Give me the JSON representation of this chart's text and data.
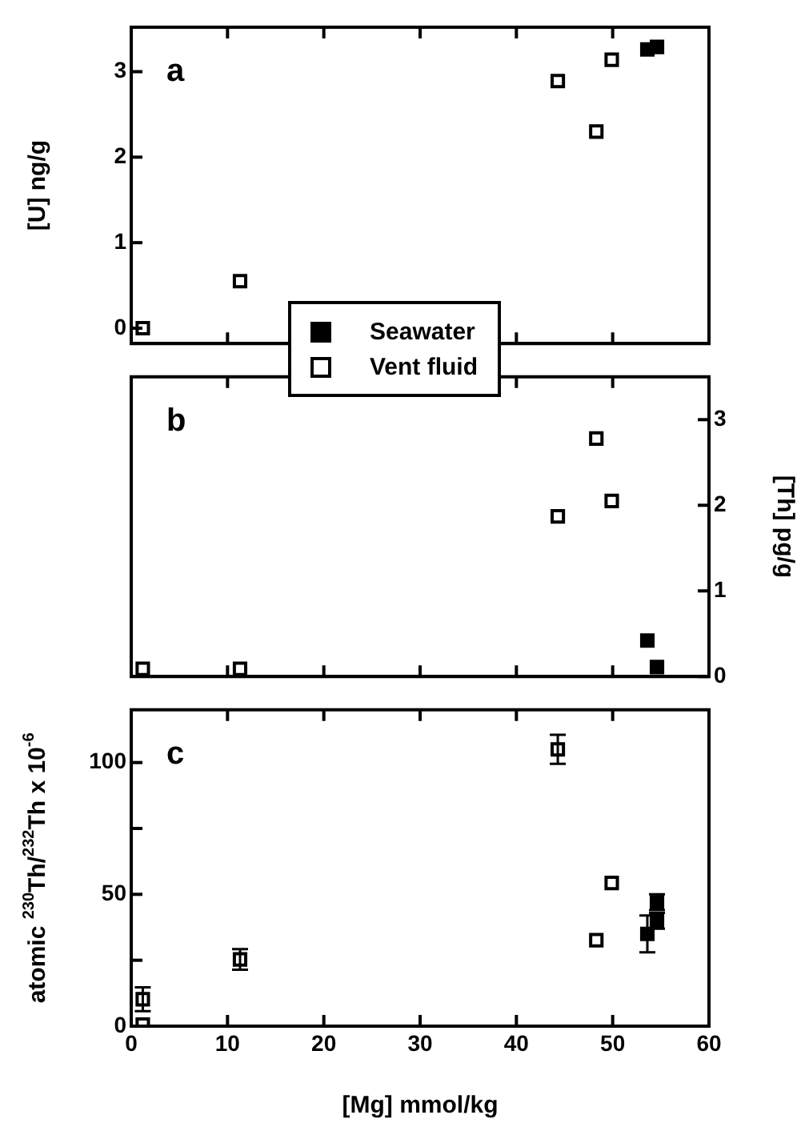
{
  "chart_data": [
    {
      "type": "scatter",
      "ylabel": "[U] ng/g",
      "annotations": [
        "a"
      ],
      "xlim": [
        0,
        60
      ],
      "xticks": [
        0,
        10,
        20,
        30,
        40,
        50,
        60
      ],
      "ylim": [
        -0.18,
        3.52
      ],
      "yticks": [
        0,
        1,
        2,
        3
      ],
      "tick_labels": "y",
      "legend": "bottom",
      "marker": "square",
      "grid": false,
      "series": [
        {
          "name": "Seawater",
          "color": "#000000",
          "x": [
            53.6,
            54.6
          ],
          "values": [
            3.26,
            3.29
          ]
        },
        {
          "name": "Vent fluid",
          "color": "#ffffff",
          "x": [
            1.2,
            11.3,
            44.3,
            48.3,
            49.9
          ],
          "values": [
            0.0,
            0.55,
            2.89,
            2.3,
            3.14
          ]
        }
      ]
    },
    {
      "type": "scatter",
      "y2label": "[Th] pg/g",
      "annotations": [
        "b"
      ],
      "xlim": [
        0,
        60
      ],
      "xticks": [
        0,
        10,
        20,
        30,
        40,
        50,
        60
      ],
      "y2lim": [
        0,
        3.5
      ],
      "y2ticks": [
        0,
        1,
        2,
        3
      ],
      "tick_labels": "y",
      "marker": "square",
      "grid": false,
      "series": [
        {
          "color": "#000000",
          "axis": "y2",
          "x": [
            53.6,
            54.6
          ],
          "values": [
            0.42,
            0.11
          ]
        },
        {
          "color": "#ffffff",
          "axis": "y2",
          "x": [
            1.2,
            11.3,
            44.3,
            48.3,
            49.9
          ],
          "values": [
            0.09,
            0.09,
            1.87,
            2.78,
            2.05
          ]
        }
      ]
    },
    {
      "type": "scatter",
      "xlabel": "[Mg] mmol/kg",
      "ylabel": "atomic $^{230}$Th/$^{232}$Th x 10$^{-6}$",
      "annotations": [
        "c"
      ],
      "xlim": [
        0,
        60
      ],
      "xticks": [
        0,
        10,
        20,
        30,
        40,
        50,
        60
      ],
      "ylim": [
        0,
        120
      ],
      "yticks": [
        0,
        {
          "value": 25,
          "label": null
        },
        50,
        {
          "value": 75,
          "label": null
        },
        100
      ],
      "marker": "square",
      "grid": false,
      "series": [
        {
          "color": "#000000",
          "x": [
            53.6,
            54.6,
            54.6
          ],
          "values": [
            35,
            47,
            40
          ],
          "errors": [
            7,
            3,
            3
          ]
        },
        {
          "color": "#ffffff",
          "x": [
            1.2,
            1.2,
            11.3,
            44.3,
            48.3,
            49.9
          ],
          "values": [
            10.2,
            0.6,
            25.3,
            105,
            32.6,
            54.3
          ],
          "errors": [
            4.5,
            null,
            3.9,
            5.5,
            null,
            null
          ]
        }
      ]
    }
  ]
}
